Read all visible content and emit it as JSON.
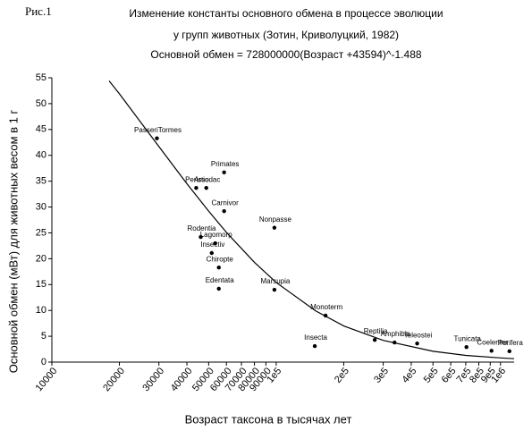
{
  "chart_data": {
    "type": "scatter",
    "figure_label": "Рис.1",
    "title": "Изменение константы основного обмена в процессе эволюции",
    "subtitle": "у групп животных (Зотин, Криволуцкий, 1982)",
    "formula": "Основной обмен = 728000000(Возраст +43594)^-1.488",
    "x_label": "Возраст таксона в тысячах лет",
    "y_label": "Основной обмен (мВт) для животных весом в 1 г",
    "xscale": "log",
    "xlim": [
      10000,
      1150000
    ],
    "ylim": [
      0,
      55
    ],
    "xticks": [
      10000,
      20000,
      30000,
      40000,
      50000,
      60000,
      70000,
      80000,
      90000,
      {
        "value": 100000,
        "label": "1e5"
      },
      {
        "value": 200000,
        "label": "2e5"
      },
      {
        "value": 300000,
        "label": "3e5"
      },
      {
        "value": 400000,
        "label": "4e5"
      },
      {
        "value": 500000,
        "label": "5e5"
      },
      {
        "value": 600000,
        "label": "6e5"
      },
      {
        "value": 700000,
        "label": "7e5"
      },
      {
        "value": 800000,
        "label": "8e5"
      },
      {
        "value": 900000,
        "label": "9e5"
      },
      {
        "value": 1000000,
        "label": "1e6"
      }
    ],
    "yticks": [
      0,
      5,
      10,
      15,
      20,
      25,
      30,
      35,
      40,
      45,
      50,
      55
    ],
    "grid": false,
    "series": [
      {
        "type": "scatter",
        "color": "#000000",
        "labels": [
          "PasseriTormes",
          "Perisso",
          "Artiodac",
          "Primates",
          "Carnivor",
          "Rodentia",
          "Lagomorp",
          "Insectiv",
          "Chiropte",
          "Edentata",
          "Nonpasse",
          "Marsupia",
          "Monoterm",
          "Insecta",
          "Reptilia",
          "Amphibia",
          "Teleostei",
          "Tunicata",
          "Coelenter",
          "Porifera"
        ],
        "x": [
          29400,
          44000,
          48800,
          58600,
          58600,
          46100,
          53500,
          51600,
          55500,
          55500,
          98200,
          98200,
          166000,
          148600,
          275000,
          337000,
          425000,
          705000,
          912000,
          1096000
        ],
        "values": [
          43.3,
          33.7,
          33.7,
          36.7,
          29.2,
          24.2,
          23.0,
          21.1,
          18.3,
          14.2,
          26.0,
          14.0,
          9.0,
          3.1,
          4.3,
          3.8,
          3.6,
          2.9,
          2.2,
          2.1
        ]
      },
      {
        "type": "line",
        "color": "#000000",
        "x": [
          18000,
          20000,
          30000,
          40000,
          50000,
          60000,
          80000,
          100000,
          150000,
          200000,
          300000,
          500000,
          700000,
          1000000,
          1150000
        ],
        "values": [
          54.4,
          51.9,
          41.7,
          34.5,
          29.2,
          25.1,
          19.3,
          15.4,
          9.9,
          7.0,
          4.2,
          2.1,
          1.3,
          0.81,
          0.66
        ]
      }
    ]
  }
}
